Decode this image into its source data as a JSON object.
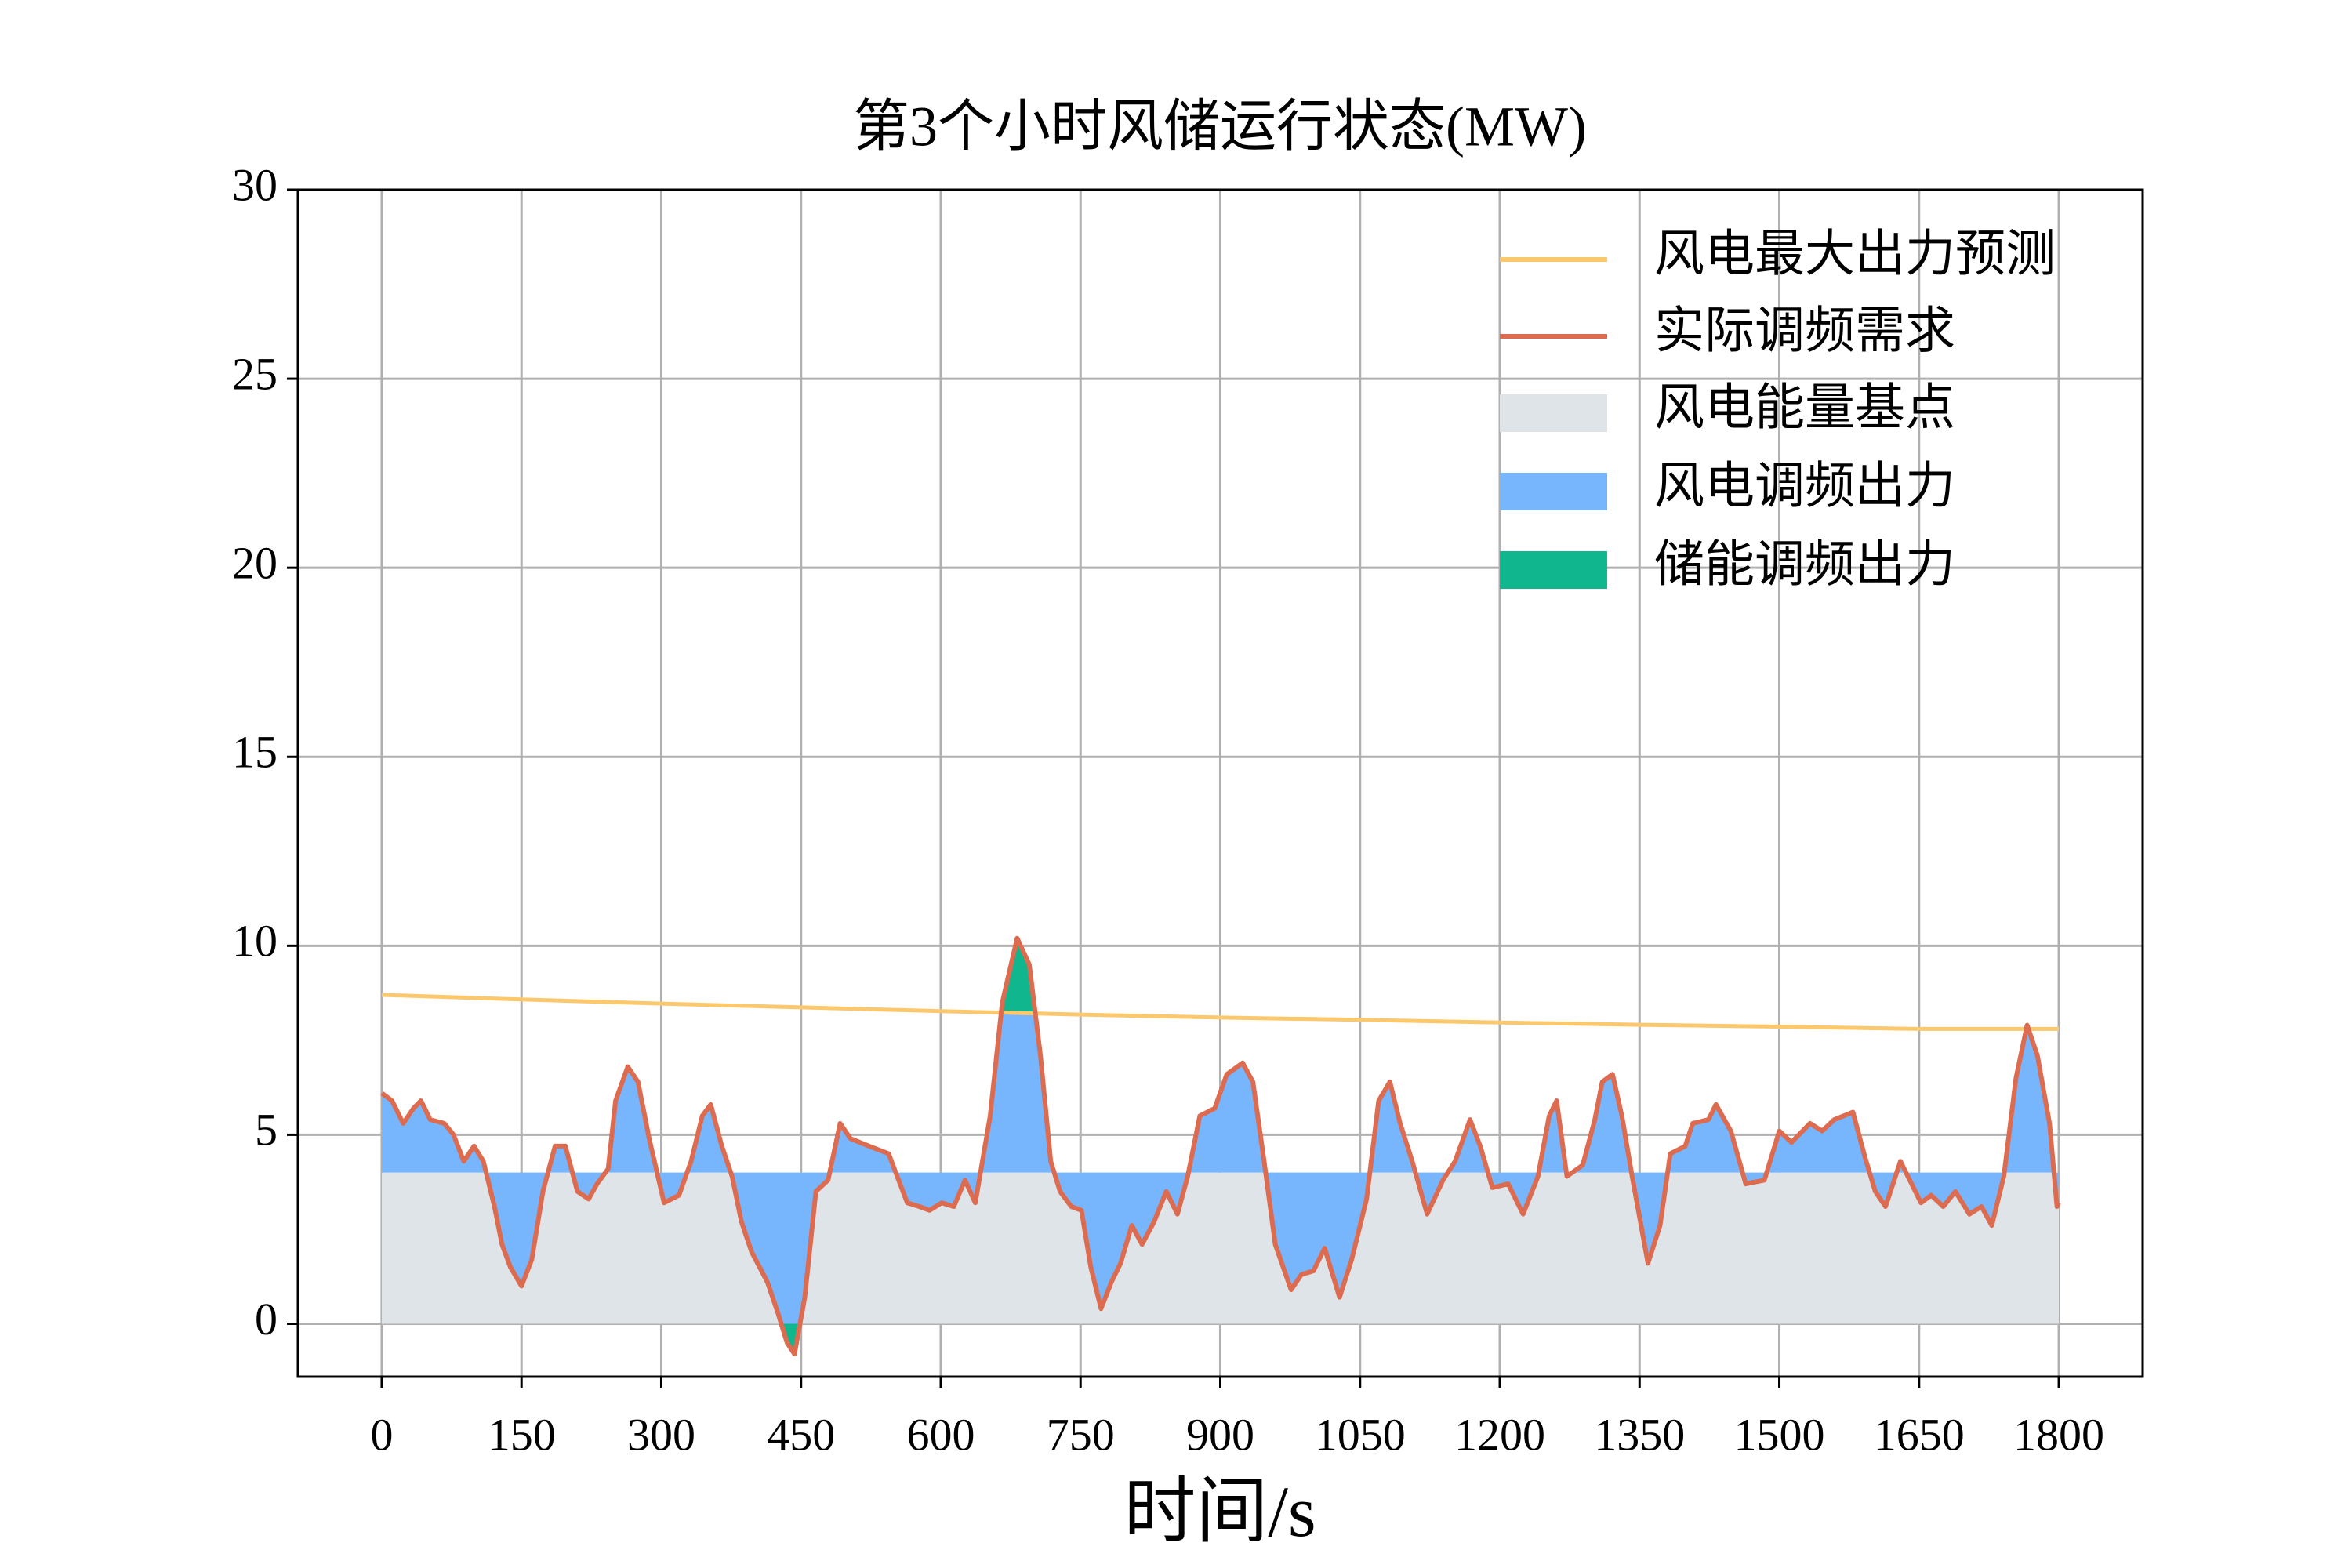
{
  "chart_data": {
    "type": "line",
    "title": "第3个小时风储运行状态(MW)",
    "xlabel": "时间/s",
    "xlim": [
      -90,
      1890
    ],
    "ylim": [
      -1.4,
      30
    ],
    "xticks": [
      0,
      150,
      300,
      450,
      600,
      750,
      900,
      1050,
      1200,
      1350,
      1500,
      1650,
      1800
    ],
    "yticks": [
      0,
      5,
      10,
      15,
      20,
      25,
      30
    ],
    "grid": true,
    "legend": "upper right",
    "series": [
      {
        "name": "风电最大出力预测",
        "kind": "line",
        "color": "#fcc86e",
        "x": [
          0,
          150,
          300,
          450,
          600,
          750,
          900,
          1050,
          1200,
          1350,
          1500,
          1650,
          1800
        ],
        "values": [
          8.7,
          8.58,
          8.47,
          8.37,
          8.27,
          8.18,
          8.1,
          8.04,
          7.97,
          7.91,
          7.86,
          7.8,
          7.8
        ]
      },
      {
        "name": "实际调频需求",
        "kind": "line",
        "color": "#dc6b50",
        "x": [
          0,
          11,
          23,
          34,
          42,
          52,
          67,
          77,
          88,
          99,
          109,
          121,
          129,
          138,
          150,
          161,
          173,
          186,
          197,
          210,
          222,
          231,
          243,
          251,
          264,
          275,
          287,
          303,
          319,
          332,
          344,
          353,
          365,
          376,
          386,
          397,
          414,
          425,
          435,
          443,
          454,
          466,
          479,
          492,
          503,
          523,
          544,
          564,
          577,
          588,
          601,
          614,
          626,
          637,
          653,
          666,
          682,
          695,
          707,
          718,
          728,
          740,
          751,
          761,
          772,
          783,
          793,
          805,
          816,
          829,
          842,
          854,
          865,
          878,
          894,
          907,
          924,
          935,
          947,
          959,
          976,
          987,
          1000,
          1012,
          1028,
          1041,
          1057,
          1070,
          1082,
          1093,
          1106,
          1122,
          1139,
          1152,
          1168,
          1179,
          1192,
          1209,
          1225,
          1241,
          1253,
          1261,
          1272,
          1289,
          1302,
          1310,
          1321,
          1331,
          1342,
          1359,
          1372,
          1383,
          1399,
          1407,
          1424,
          1432,
          1448,
          1464,
          1484,
          1500,
          1513,
          1533,
          1546,
          1559,
          1579,
          1592,
          1603,
          1614,
          1630,
          1640,
          1652,
          1663,
          1676,
          1689,
          1704,
          1717,
          1728,
          1741,
          1754,
          1766,
          1777,
          1790,
          1798,
          1800
        ],
        "values": [
          6.1,
          5.9,
          5.3,
          5.7,
          5.9,
          5.4,
          5.3,
          5.0,
          4.3,
          4.7,
          4.3,
          3.1,
          2.1,
          1.5,
          1.0,
          1.7,
          3.5,
          4.7,
          4.7,
          3.5,
          3.3,
          3.7,
          4.1,
          5.9,
          6.8,
          6.4,
          4.9,
          3.2,
          3.4,
          4.3,
          5.5,
          5.8,
          4.7,
          3.9,
          2.7,
          1.9,
          1.1,
          0.3,
          -0.5,
          -0.8,
          0.7,
          3.5,
          3.8,
          5.3,
          4.9,
          4.7,
          4.5,
          3.2,
          3.1,
          3.0,
          3.2,
          3.1,
          3.8,
          3.2,
          5.5,
          8.5,
          10.2,
          9.5,
          7.1,
          4.3,
          3.5,
          3.1,
          3.0,
          1.5,
          0.4,
          1.1,
          1.6,
          2.6,
          2.1,
          2.7,
          3.5,
          2.9,
          3.9,
          5.5,
          5.7,
          6.6,
          6.9,
          6.4,
          4.3,
          2.1,
          0.9,
          1.3,
          1.4,
          2.0,
          0.7,
          1.7,
          3.3,
          5.9,
          6.4,
          5.3,
          4.3,
          2.9,
          3.8,
          4.3,
          5.4,
          4.7,
          3.6,
          3.7,
          2.9,
          3.9,
          5.5,
          5.9,
          3.9,
          4.2,
          5.4,
          6.4,
          6.6,
          5.5,
          3.9,
          1.6,
          2.6,
          4.5,
          4.7,
          5.3,
          5.4,
          5.8,
          5.1,
          3.7,
          3.8,
          5.1,
          4.8,
          5.3,
          5.1,
          5.4,
          5.6,
          4.4,
          3.5,
          3.1,
          4.3,
          3.8,
          3.2,
          3.4,
          3.1,
          3.5,
          2.9,
          3.1,
          2.6,
          3.9,
          6.5,
          7.9,
          7.1,
          5.3,
          3.1,
          3.2
        ]
      },
      {
        "name": "风电能量基点",
        "kind": "area",
        "color": "#dfe4e8",
        "x": [
          0,
          1800
        ],
        "values": [
          4,
          4
        ]
      },
      {
        "name": "风电调频出力",
        "kind": "fill",
        "color": "#77b6fd"
      },
      {
        "name": "储能调频出力",
        "kind": "fill",
        "color": "#10b68d"
      }
    ]
  }
}
